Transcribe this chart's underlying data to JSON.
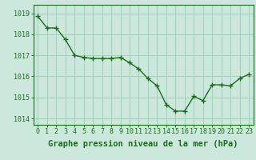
{
  "x": [
    0,
    1,
    2,
    3,
    4,
    5,
    6,
    7,
    8,
    9,
    10,
    11,
    12,
    13,
    14,
    15,
    16,
    17,
    18,
    19,
    20,
    21,
    22,
    23
  ],
  "y": [
    1018.85,
    1018.3,
    1018.3,
    1017.75,
    1017.0,
    1016.9,
    1016.85,
    1016.85,
    1016.85,
    1016.9,
    1016.65,
    1016.35,
    1015.9,
    1015.55,
    1014.65,
    1014.35,
    1014.35,
    1015.05,
    1014.85,
    1015.6,
    1015.6,
    1015.55,
    1015.9,
    1016.1
  ],
  "line_color": "#1a6e1a",
  "marker": "+",
  "marker_size": 4,
  "marker_color": "#1a6e1a",
  "bg_color": "#cce8dc",
  "grid_color": "#99ccb8",
  "axis_color": "#1a6e1a",
  "tick_color": "#1a6e1a",
  "xlabel": "Graphe pression niveau de la mer (hPa)",
  "xlabel_fontsize": 7.5,
  "ylim": [
    1013.7,
    1019.4
  ],
  "xlim": [
    -0.5,
    23.5
  ],
  "yticks": [
    1014,
    1015,
    1016,
    1017,
    1018,
    1019
  ],
  "xticks": [
    0,
    1,
    2,
    3,
    4,
    5,
    6,
    7,
    8,
    9,
    10,
    11,
    12,
    13,
    14,
    15,
    16,
    17,
    18,
    19,
    20,
    21,
    22,
    23
  ],
  "tick_fontsize": 6,
  "line_width": 1.0
}
